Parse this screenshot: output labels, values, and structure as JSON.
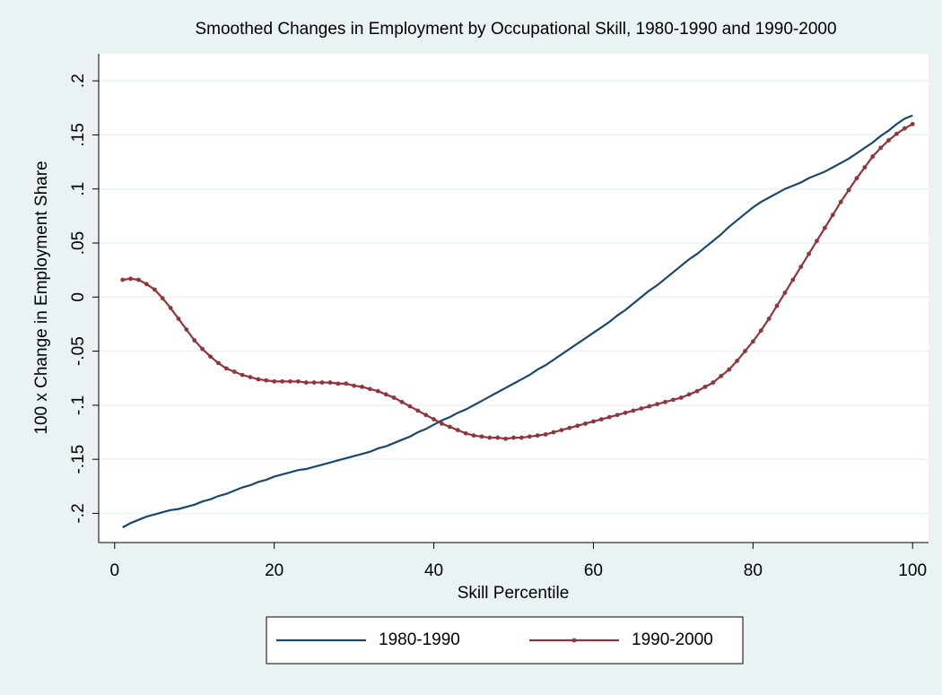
{
  "chart_data": {
    "type": "line",
    "title": "Smoothed Changes in Employment by Occupational Skill, 1980-1990 and 1990-2000",
    "x_label": "Skill Percentile",
    "y_label": "100 x Change in Employment Share",
    "x": [
      1,
      2,
      3,
      4,
      5,
      6,
      7,
      8,
      9,
      10,
      11,
      12,
      13,
      14,
      15,
      16,
      17,
      18,
      19,
      20,
      21,
      22,
      23,
      24,
      25,
      26,
      27,
      28,
      29,
      30,
      31,
      32,
      33,
      34,
      35,
      36,
      37,
      38,
      39,
      40,
      41,
      42,
      43,
      44,
      45,
      46,
      47,
      48,
      49,
      50,
      51,
      52,
      53,
      54,
      55,
      56,
      57,
      58,
      59,
      60,
      61,
      62,
      63,
      64,
      65,
      66,
      67,
      68,
      69,
      70,
      71,
      72,
      73,
      74,
      75,
      76,
      77,
      78,
      79,
      80,
      81,
      82,
      83,
      84,
      85,
      86,
      87,
      88,
      89,
      90,
      91,
      92,
      93,
      94,
      95,
      96,
      97,
      98,
      99,
      100
    ],
    "series": [
      {
        "name": "1980-1990",
        "color": "#1a476f",
        "markers": false,
        "values": [
          -0.213,
          -0.209,
          -0.206,
          -0.203,
          -0.201,
          -0.199,
          -0.197,
          -0.196,
          -0.194,
          -0.192,
          -0.189,
          -0.187,
          -0.184,
          -0.182,
          -0.179,
          -0.176,
          -0.174,
          -0.171,
          -0.169,
          -0.166,
          -0.164,
          -0.162,
          -0.16,
          -0.159,
          -0.157,
          -0.155,
          -0.153,
          -0.151,
          -0.149,
          -0.147,
          -0.145,
          -0.143,
          -0.14,
          -0.138,
          -0.135,
          -0.132,
          -0.129,
          -0.125,
          -0.122,
          -0.118,
          -0.114,
          -0.111,
          -0.107,
          -0.104,
          -0.1,
          -0.096,
          -0.092,
          -0.088,
          -0.084,
          -0.08,
          -0.076,
          -0.072,
          -0.067,
          -0.063,
          -0.058,
          -0.053,
          -0.048,
          -0.043,
          -0.038,
          -0.033,
          -0.028,
          -0.023,
          -0.017,
          -0.012,
          -0.006,
          0.0,
          0.006,
          0.011,
          0.017,
          0.023,
          0.029,
          0.035,
          0.04,
          0.046,
          0.052,
          0.058,
          0.065,
          0.071,
          0.077,
          0.083,
          0.088,
          0.092,
          0.096,
          0.1,
          0.103,
          0.106,
          0.11,
          0.113,
          0.116,
          0.12,
          0.124,
          0.128,
          0.133,
          0.138,
          0.143,
          0.149,
          0.154,
          0.16,
          0.165,
          0.168
        ]
      },
      {
        "name": "1990-2000",
        "color": "#90353b",
        "markers": true,
        "values": [
          0.016,
          0.017,
          0.016,
          0.012,
          0.007,
          -0.001,
          -0.01,
          -0.02,
          -0.03,
          -0.04,
          -0.048,
          -0.055,
          -0.061,
          -0.066,
          -0.069,
          -0.072,
          -0.074,
          -0.076,
          -0.077,
          -0.078,
          -0.078,
          -0.078,
          -0.078,
          -0.079,
          -0.079,
          -0.079,
          -0.079,
          -0.08,
          -0.08,
          -0.082,
          -0.083,
          -0.085,
          -0.087,
          -0.09,
          -0.093,
          -0.097,
          -0.101,
          -0.105,
          -0.109,
          -0.113,
          -0.117,
          -0.12,
          -0.123,
          -0.126,
          -0.128,
          -0.129,
          -0.13,
          -0.13,
          -0.131,
          -0.13,
          -0.13,
          -0.129,
          -0.128,
          -0.127,
          -0.125,
          -0.123,
          -0.121,
          -0.119,
          -0.117,
          -0.115,
          -0.113,
          -0.111,
          -0.109,
          -0.107,
          -0.105,
          -0.103,
          -0.101,
          -0.099,
          -0.097,
          -0.095,
          -0.093,
          -0.09,
          -0.087,
          -0.083,
          -0.079,
          -0.073,
          -0.067,
          -0.059,
          -0.05,
          -0.041,
          -0.031,
          -0.02,
          -0.008,
          0.004,
          0.016,
          0.028,
          0.04,
          0.052,
          0.064,
          0.076,
          0.088,
          0.099,
          0.11,
          0.12,
          0.13,
          0.138,
          0.145,
          0.151,
          0.156,
          0.16
        ]
      }
    ],
    "xlim": [
      -2,
      102
    ],
    "ylim": [
      -0.227,
      0.225
    ],
    "xticks": [
      0,
      20,
      40,
      60,
      80,
      100
    ],
    "yticks": [
      {
        "value": -0.2,
        "label": "-.2"
      },
      {
        "value": -0.15,
        "label": "-.15"
      },
      {
        "value": -0.1,
        "label": "-.1"
      },
      {
        "value": -0.05,
        "label": "-.05"
      },
      0,
      {
        "value": 0.05,
        "label": ".05"
      },
      {
        "value": 0.1,
        "label": ".1"
      },
      {
        "value": 0.15,
        "label": ".15"
      },
      {
        "value": 0.2,
        "label": ".2"
      }
    ],
    "grid": true,
    "legend": "bottom"
  }
}
